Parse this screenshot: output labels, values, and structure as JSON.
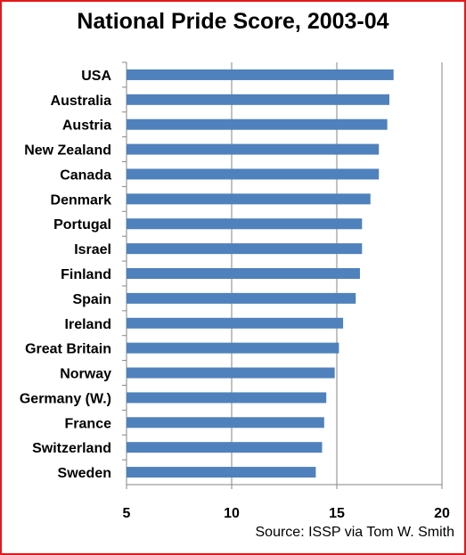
{
  "chart_data": {
    "type": "bar",
    "orientation": "horizontal",
    "title": "National Pride Score, 2003-04",
    "source": "Source: ISSP via Tom W. Smith",
    "categories": [
      "USA",
      "Australia",
      "Austria",
      "New Zealand",
      "Canada",
      "Denmark",
      "Portugal",
      "Israel",
      "Finland",
      "Spain",
      "Ireland",
      "Great Britain",
      "Norway",
      "Germany (W.)",
      "France",
      "Switzerland",
      "Sweden"
    ],
    "values": [
      17.7,
      17.5,
      17.4,
      17.0,
      17.0,
      16.6,
      16.2,
      16.2,
      16.1,
      15.9,
      15.3,
      15.1,
      14.9,
      14.5,
      14.4,
      14.3,
      14.0
    ],
    "xlim": [
      5,
      20
    ],
    "xticks": [
      "5",
      "10",
      "15",
      "20"
    ],
    "grid": true,
    "bar_color": "#4f81bd",
    "frame_color": "#e3191b"
  }
}
